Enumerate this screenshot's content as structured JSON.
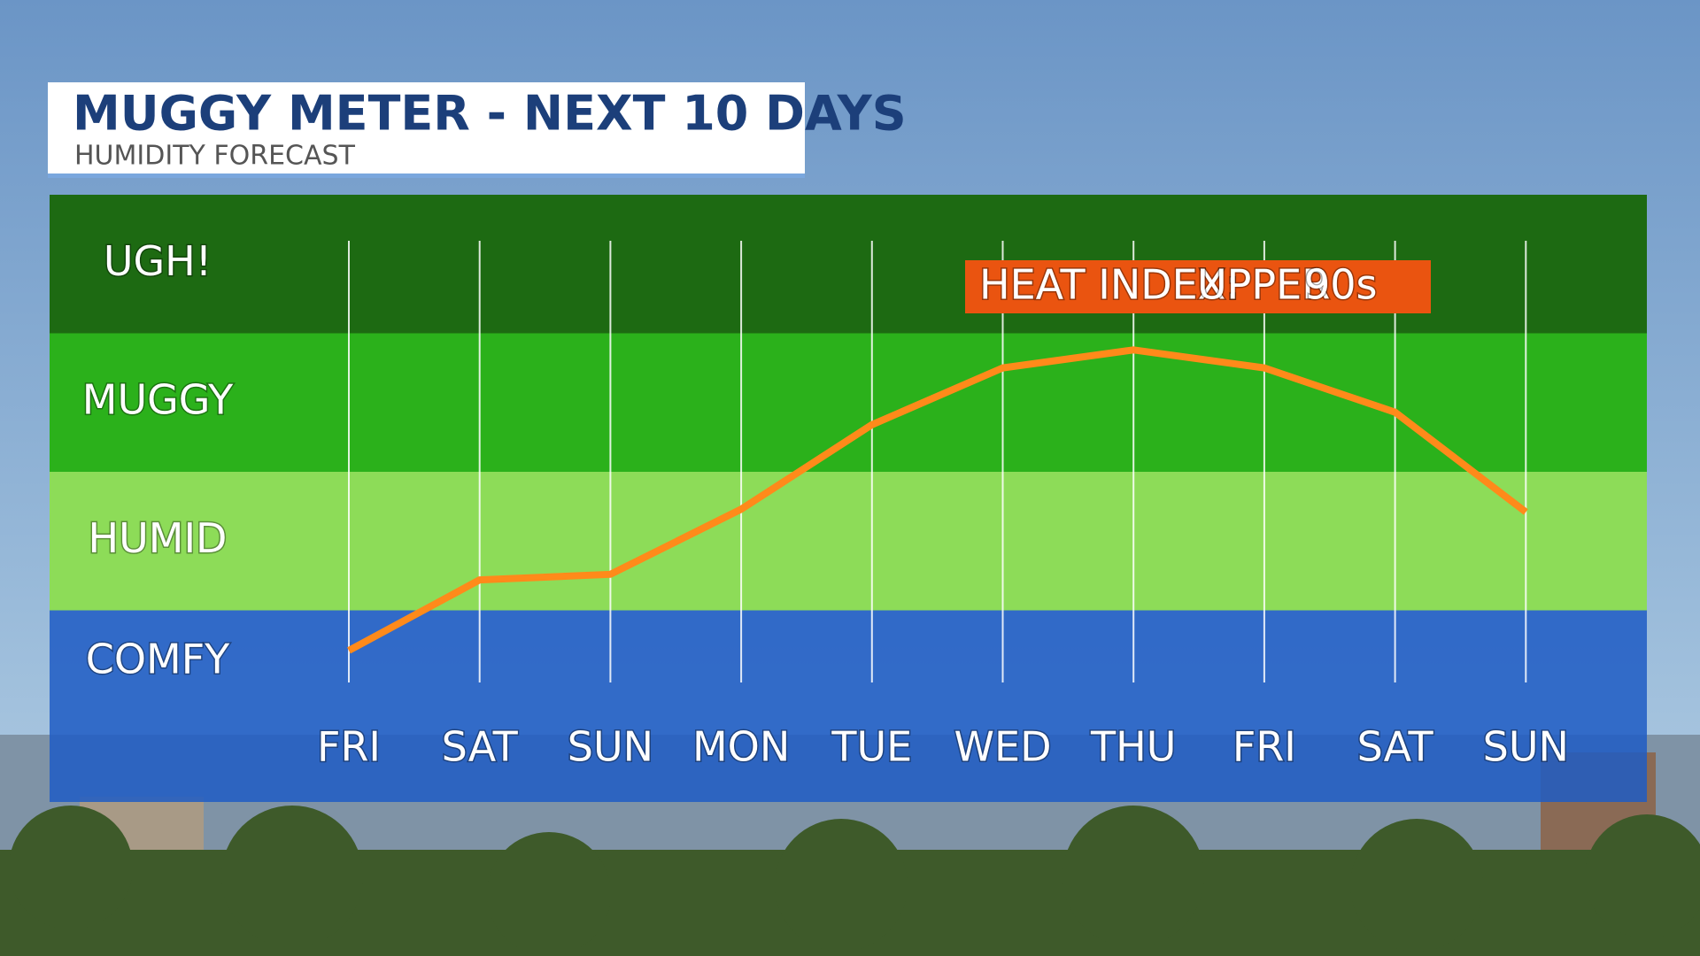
{
  "chart_data": {
    "type": "line",
    "title": "MUGGY METER - NEXT 10 DAYS",
    "subtitle": "HUMIDITY FORECAST",
    "categories": [
      "FRI",
      "SAT",
      "SUN",
      "MON",
      "TUE",
      "WED",
      "THU",
      "FRI",
      "SAT",
      "SUN"
    ],
    "values": [
      0.71,
      1.22,
      1.26,
      1.73,
      2.34,
      2.75,
      2.88,
      2.75,
      2.43,
      1.71
    ],
    "color": "#ff8a1a",
    "ylim": [
      0,
      4
    ],
    "yticks": [
      {
        "value": 0.5,
        "label": "COMFY"
      },
      {
        "value": 1.5,
        "label": "HUMID"
      },
      {
        "value": 2.5,
        "label": "MUGGY"
      },
      {
        "value": 3.5,
        "label": "UGH!"
      }
    ],
    "band_colors": [
      "#1f5cc4",
      "#8ddc58",
      "#2bb11b",
      "#1d6a12"
    ],
    "grid": true,
    "annotation": [
      "HEAT INDEX:",
      "UPPER",
      "90s"
    ],
    "annotation_color": "#ea5410"
  }
}
